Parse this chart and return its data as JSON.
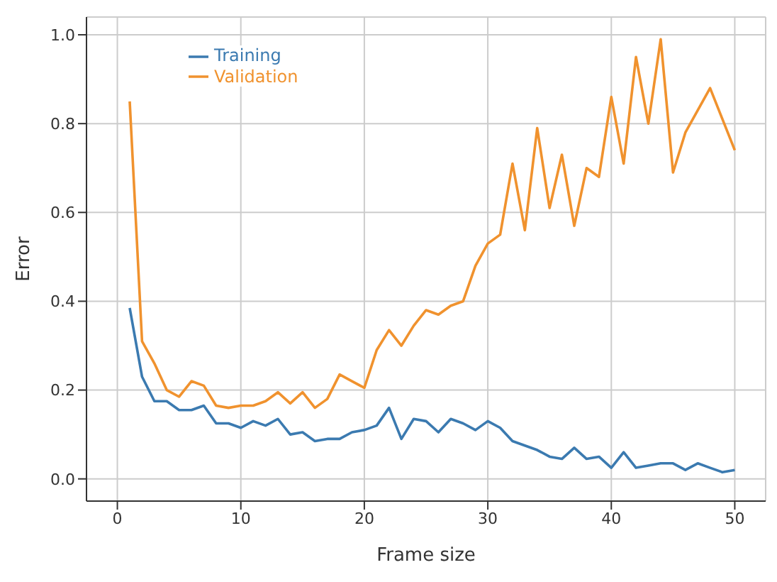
{
  "chart_data": {
    "type": "line",
    "xlabel": "Frame size",
    "ylabel": "Error",
    "x": [
      1,
      2,
      3,
      4,
      5,
      6,
      7,
      8,
      9,
      10,
      11,
      12,
      13,
      14,
      15,
      16,
      17,
      18,
      19,
      20,
      21,
      22,
      23,
      24,
      25,
      26,
      27,
      28,
      29,
      30,
      31,
      32,
      33,
      34,
      35,
      36,
      37,
      38,
      39,
      40,
      41,
      42,
      43,
      44,
      45,
      46,
      47,
      48,
      49,
      50
    ],
    "series": [
      {
        "name": "Training",
        "color": "#3b7ab0",
        "values": [
          0.385,
          0.23,
          0.175,
          0.175,
          0.155,
          0.155,
          0.165,
          0.125,
          0.125,
          0.115,
          0.13,
          0.12,
          0.135,
          0.1,
          0.105,
          0.085,
          0.09,
          0.09,
          0.105,
          0.11,
          0.12,
          0.16,
          0.09,
          0.135,
          0.13,
          0.105,
          0.135,
          0.125,
          0.11,
          0.13,
          0.115,
          0.085,
          0.075,
          0.065,
          0.05,
          0.045,
          0.07,
          0.045,
          0.05,
          0.025,
          0.06,
          0.025,
          0.03,
          0.035,
          0.035,
          0.02,
          0.035,
          0.025,
          0.015,
          0.02
        ]
      },
      {
        "name": "Validation",
        "color": "#f0922e",
        "values": [
          0.85,
          0.31,
          0.26,
          0.2,
          0.185,
          0.22,
          0.21,
          0.165,
          0.16,
          0.165,
          0.165,
          0.175,
          0.195,
          0.17,
          0.195,
          0.16,
          0.18,
          0.235,
          0.22,
          0.205,
          0.29,
          0.335,
          0.3,
          0.345,
          0.38,
          0.37,
          0.39,
          0.4,
          0.48,
          0.53,
          0.55,
          0.71,
          0.56,
          0.79,
          0.61,
          0.73,
          0.57,
          0.7,
          0.68,
          0.86,
          0.71,
          0.95,
          0.8,
          0.99,
          0.69,
          0.78,
          0.83,
          0.88,
          0.81,
          0.74
        ]
      }
    ],
    "xlim": [
      -2.5,
      52.5
    ],
    "xticks": [
      0,
      10,
      20,
      30,
      40,
      50
    ],
    "ylim": [
      -0.05,
      1.04
    ],
    "yticks": [
      {
        "value": 0,
        "label": "0.0"
      },
      {
        "value": 0.2,
        "label": "0.2"
      },
      {
        "value": 0.4,
        "label": "0.4"
      },
      {
        "value": 0.6,
        "label": "0.6"
      },
      {
        "value": 0.8,
        "label": "0.8"
      },
      {
        "value": 1,
        "label": "1.0"
      }
    ],
    "grid": true,
    "legend": "top left",
    "marker": "none",
    "line_style": "solid"
  }
}
